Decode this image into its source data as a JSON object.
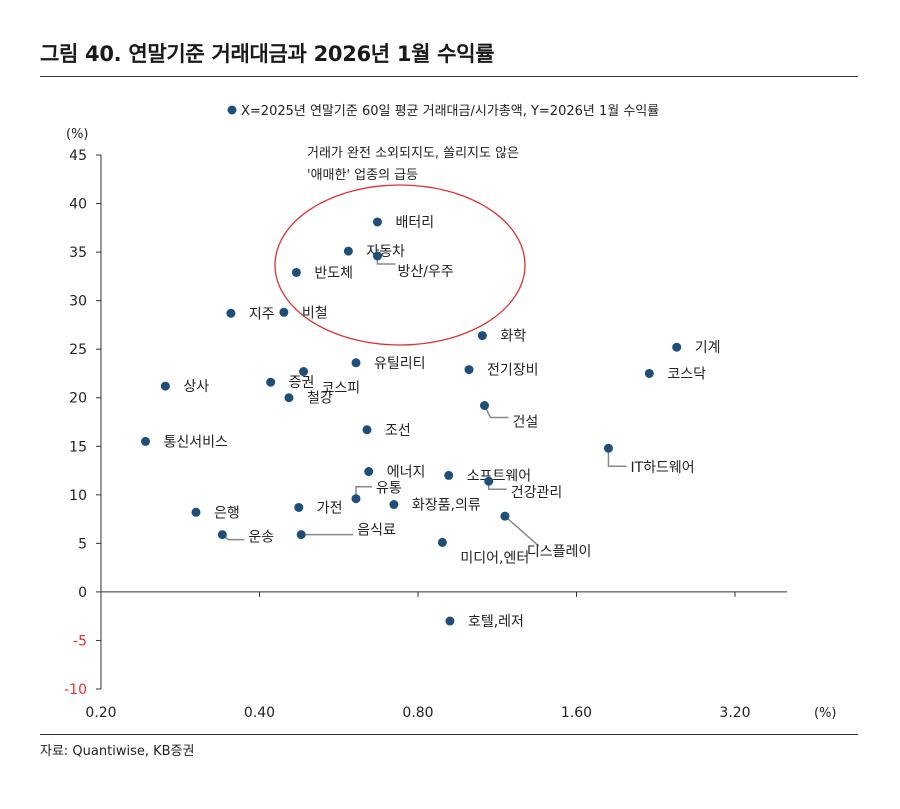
{
  "header": {
    "title": "그림 40. 연말기준 거래대금과 2026년 1월 수익률"
  },
  "footer": {
    "source": "자료: Quantiwise, KB증권"
  },
  "colors": {
    "marker": "#1f4e79",
    "circle": "#e03030",
    "negative_tick": "#e03030",
    "leader": "#888888",
    "axis": "#333333"
  },
  "chart_data": {
    "type": "scatter",
    "legend": "X=2025년 연말기준 60일 평균 거래대금/시가총액, Y=2026년 1월 수익률",
    "ylabel": "(%)",
    "xlabel": "(%)",
    "x_scale": "log2",
    "xlim": [
      0.2,
      4.8
    ],
    "ylim": [
      -10,
      45
    ],
    "x_ticks": [
      0.2,
      0.4,
      0.8,
      1.6,
      3.2
    ],
    "x_tick_labels": [
      "0.20",
      "0.40",
      "0.80",
      "1.60",
      "3.20"
    ],
    "y_ticks": [
      45,
      40,
      35,
      30,
      25,
      20,
      15,
      10,
      5,
      0,
      -5,
      -10
    ],
    "y_tick_labels": [
      "45",
      "40",
      "35",
      "30",
      "25",
      "20",
      "15",
      "10",
      "5",
      "0",
      "-5",
      "-10"
    ],
    "annotation": [
      "거래가 완전 소외되지도, 쏠리지도 않은",
      "'애매한' 업종의 급등"
    ],
    "points": [
      {
        "label": "배터리",
        "x": 0.67,
        "y": 38.1
      },
      {
        "label": "자동차",
        "x": 0.59,
        "y": 35.1
      },
      {
        "label": "방산/우주",
        "x": 0.67,
        "y": 34.6
      },
      {
        "label": "반도체",
        "x": 0.47,
        "y": 32.9
      },
      {
        "label": "지주",
        "x": 0.353,
        "y": 28.7
      },
      {
        "label": "비철",
        "x": 0.445,
        "y": 28.8
      },
      {
        "label": "화학",
        "x": 1.06,
        "y": 26.4
      },
      {
        "label": "기계",
        "x": 2.48,
        "y": 25.2
      },
      {
        "label": "유틸리티",
        "x": 0.61,
        "y": 23.6
      },
      {
        "label": "전기장비",
        "x": 1.0,
        "y": 22.9
      },
      {
        "label": "코스닥",
        "x": 2.2,
        "y": 22.5
      },
      {
        "label": "코스피",
        "x": 0.485,
        "y": 22.7
      },
      {
        "label": "상사",
        "x": 0.265,
        "y": 21.2
      },
      {
        "label": "증권",
        "x": 0.42,
        "y": 21.6
      },
      {
        "label": "철강",
        "x": 0.455,
        "y": 20.0
      },
      {
        "label": "건설",
        "x": 1.07,
        "y": 19.2
      },
      {
        "label": "조선",
        "x": 0.64,
        "y": 16.7
      },
      {
        "label": "통신서비스",
        "x": 0.243,
        "y": 15.5
      },
      {
        "label": "IT하드웨어",
        "x": 1.84,
        "y": 14.8
      },
      {
        "label": "에너지",
        "x": 0.645,
        "y": 12.4
      },
      {
        "label": "소프트웨어",
        "x": 0.915,
        "y": 12.0
      },
      {
        "label": "건강관리",
        "x": 1.09,
        "y": 11.4
      },
      {
        "label": "유통",
        "x": 0.61,
        "y": 9.6
      },
      {
        "label": "화장품,의류",
        "x": 0.72,
        "y": 9.0
      },
      {
        "label": "가전",
        "x": 0.475,
        "y": 8.7
      },
      {
        "label": "은행",
        "x": 0.303,
        "y": 8.2
      },
      {
        "label": "디스플레이",
        "x": 1.17,
        "y": 7.8
      },
      {
        "label": "운송",
        "x": 0.34,
        "y": 5.9
      },
      {
        "label": "음식료",
        "x": 0.48,
        "y": 5.9
      },
      {
        "label": "미디어,엔터",
        "x": 0.89,
        "y": 5.1
      },
      {
        "label": "호텔,레저",
        "x": 0.92,
        "y": -3.0
      }
    ]
  }
}
